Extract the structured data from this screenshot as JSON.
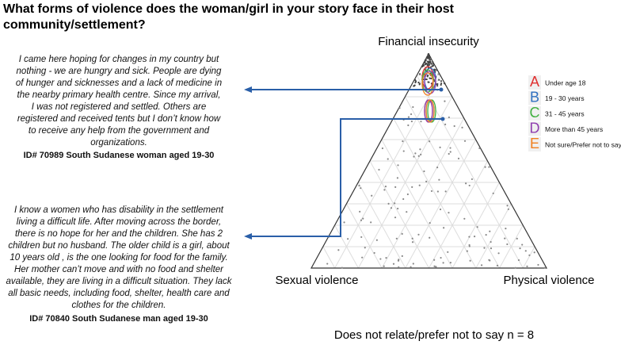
{
  "title": [
    "What forms of violence does the woman/girl in your story face in their host",
    "community/settlement?"
  ],
  "quotes": [
    {
      "lines": [
        "I came here hoping for changes in my country but",
        "nothing - we are hungry and sick. People are dying",
        "of hunger and sicknesses and a lack of medicine in",
        "the nearby primary health centre. Since my arrival,",
        "I was not registered and settled. Others are",
        "registered and received tents but I don’t know how",
        "to receive any help from the government and",
        "organizations."
      ],
      "id": "ID# 70989 South Sudanese woman aged 19-30"
    },
    {
      "lines": [
        "I know a women who has disability in the settlement",
        "living a difficult life. After moving across the border,",
        "there is no hope for her and the children. She has 2",
        "children but no husband. The older child is a girl, about",
        "10 years old , is the one looking for food for the family.",
        "Her mother can’t move and with no food and shelter",
        "available, they are living in a difficult situation. They lack",
        "all basic needs, including food, shelter, health care and",
        "clothes for the children."
      ],
      "id": "ID# 70840 South Sudanese man aged 19-30"
    }
  ],
  "ternary": {
    "top": "Financial insecurity",
    "left": "Sexual violence",
    "right": "Physical violence",
    "legend": [
      {
        "letter": "A",
        "label": "Under age 18",
        "color": "#e03030"
      },
      {
        "letter": "B",
        "label": "19 - 30 years",
        "color": "#3070c0"
      },
      {
        "letter": "C",
        "label": "31 - 45 years",
        "color": "#40b040"
      },
      {
        "letter": "D",
        "label": "More than 45 years",
        "color": "#9040b0"
      },
      {
        "letter": "E",
        "label": "Not sure/Prefer not to say",
        "color": "#f08020"
      }
    ],
    "note": "Does not relate/prefer not to say n = 8"
  }
}
